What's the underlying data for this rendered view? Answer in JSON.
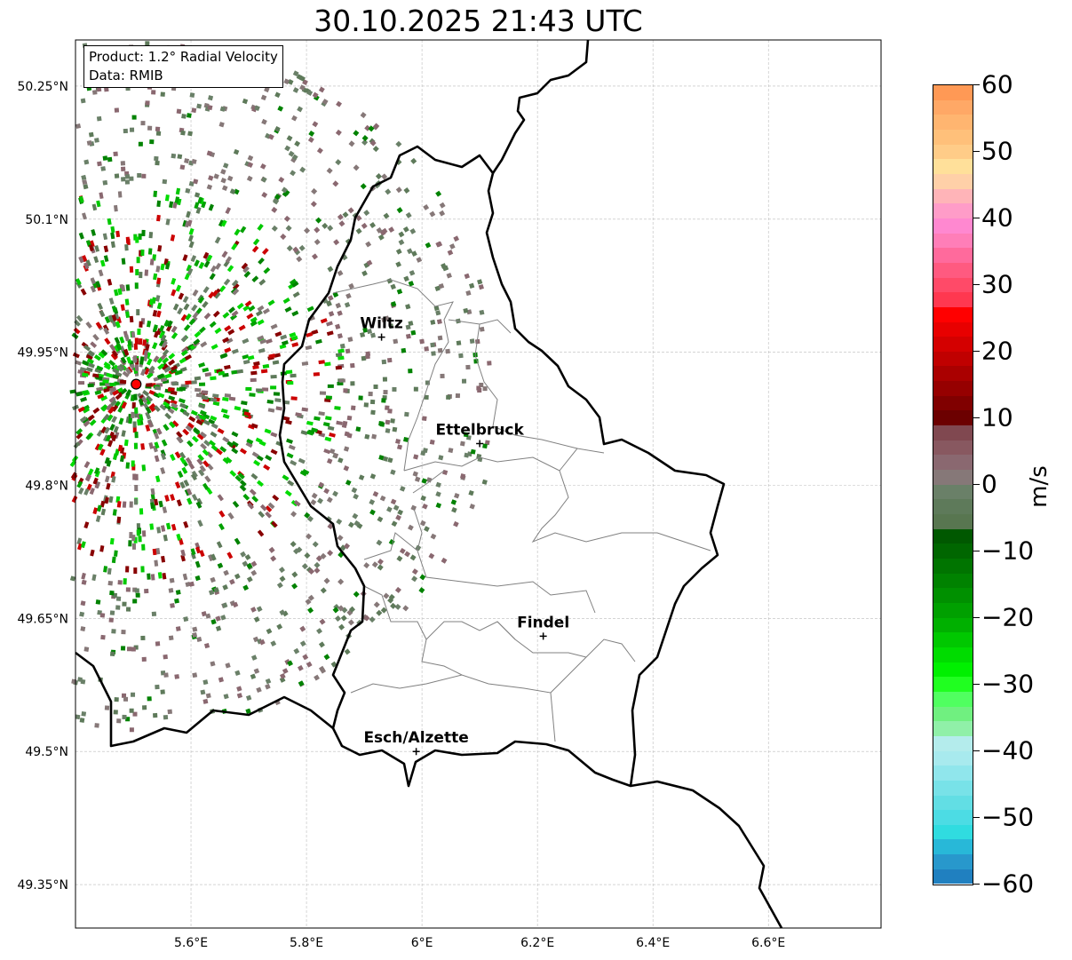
{
  "title": "30.10.2025 21:43 UTC",
  "info": {
    "product": "Product: 1.2° Radial Velocity",
    "data": "Data: RMIB"
  },
  "axes": {
    "lon_ticks": [
      {
        "value": 5.6,
        "label": "5.6°E"
      },
      {
        "value": 5.8,
        "label": "5.8°E"
      },
      {
        "value": 6.0,
        "label": "6°E"
      },
      {
        "value": 6.2,
        "label": "6.2°E"
      },
      {
        "value": 6.4,
        "label": "6.4°E"
      },
      {
        "value": 6.6,
        "label": "6.6°E"
      }
    ],
    "lat_ticks": [
      {
        "value": 50.25,
        "label": "50.25°N"
      },
      {
        "value": 50.1,
        "label": "50.1°N"
      },
      {
        "value": 49.95,
        "label": "49.95°N"
      },
      {
        "value": 49.8,
        "label": "49.8°N"
      },
      {
        "value": 49.65,
        "label": "49.65°N"
      },
      {
        "value": 49.5,
        "label": "49.5°N"
      },
      {
        "value": 49.35,
        "label": "49.35°N"
      }
    ],
    "lon_range": [
      5.4,
      6.795
    ],
    "lat_range": [
      49.301,
      50.302
    ]
  },
  "radar": {
    "lon": 5.505,
    "lat": 49.914
  },
  "cities": [
    {
      "name": "Wiltz",
      "lon": 5.93,
      "lat": 49.967
    },
    {
      "name": "Ettelbruck",
      "lon": 6.1,
      "lat": 49.847
    },
    {
      "name": "Findel",
      "lon": 6.21,
      "lat": 49.63
    },
    {
      "name": "Esch/Alzette",
      "lon": 5.99,
      "lat": 49.5
    }
  ],
  "colorbar": {
    "unit": "m/s",
    "min": -60,
    "max": 60,
    "ticks": [
      {
        "v": 60,
        "label": "60"
      },
      {
        "v": 50,
        "label": "50"
      },
      {
        "v": 40,
        "label": "40"
      },
      {
        "v": 30,
        "label": "30"
      },
      {
        "v": 20,
        "label": "20"
      },
      {
        "v": 10,
        "label": "10"
      },
      {
        "v": 0,
        "label": "0"
      },
      {
        "v": -10,
        "label": "−10"
      },
      {
        "v": -20,
        "label": "−20"
      },
      {
        "v": -30,
        "label": "−30"
      },
      {
        "v": -40,
        "label": "−40"
      },
      {
        "v": -50,
        "label": "−50"
      },
      {
        "v": -60,
        "label": "−60"
      }
    ],
    "colors_top_to_bottom": [
      "#ff9955",
      "#ffa866",
      "#ffb570",
      "#ffc07a",
      "#ffcc88",
      "#ffe09a",
      "#ffd0a8",
      "#ffb4b8",
      "#ff9cc8",
      "#ff88d0",
      "#ff7eb8",
      "#ff6a9c",
      "#ff5a80",
      "#ff4a68",
      "#ff3850",
      "#ff0000",
      "#e80000",
      "#d40000",
      "#c00000",
      "#aa0000",
      "#960000",
      "#800000",
      "#6c0000",
      "#804850",
      "#885860",
      "#8a6870",
      "#867878",
      "#6a8068",
      "#5e7a5a",
      "#587650",
      "#005800",
      "#006600",
      "#007400",
      "#008200",
      "#009000",
      "#00a000",
      "#00b000",
      "#00c800",
      "#00dc00",
      "#00f000",
      "#20ff20",
      "#50ff60",
      "#70f080",
      "#90f0a8",
      "#b4ecec",
      "#a8eaee",
      "#90e6ec",
      "#78e2e8",
      "#62dee4",
      "#4cdce4",
      "#30dce0",
      "#28b8d8",
      "#2898cc",
      "#2080c0"
    ]
  }
}
